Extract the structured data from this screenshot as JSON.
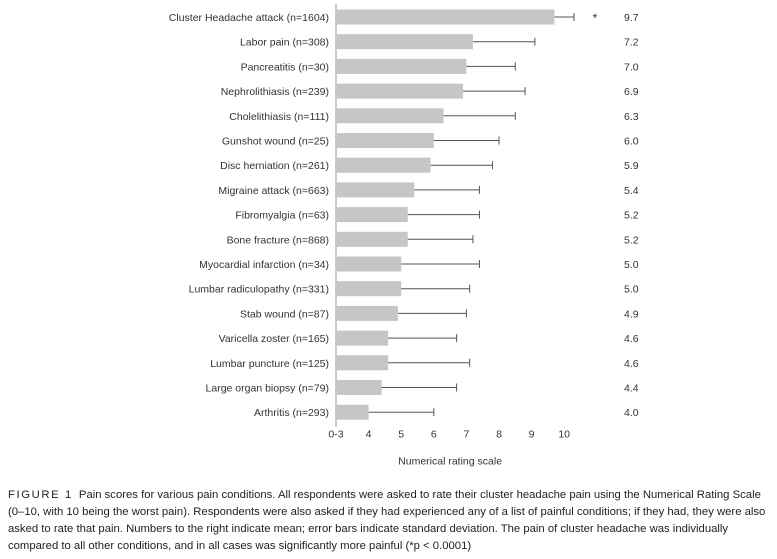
{
  "chart_data": {
    "type": "bar",
    "orientation": "horizontal",
    "categories": [
      "Cluster Headache attack (n=1604)",
      "Labor pain (n=308)",
      "Pancreatitis (n=30)",
      "Nephrolithiasis (n=239)",
      "Cholelithiasis (n=111)",
      "Gunshot wound (n=25)",
      "Disc herniation (n=261)",
      "Migraine attack (n=663)",
      "Fibromyalgia (n=63)",
      "Bone fracture (n=868)",
      "Myocardial infarction (n=34)",
      "Lumbar radiculopathy (n=331)",
      "Stab wound (n=87)",
      "Varicella zoster (n=165)",
      "Lumbar puncture (n=125)",
      "Large organ biopsy (n=79)",
      "Arthritis (n=293)"
    ],
    "values": [
      9.7,
      7.2,
      7.0,
      6.9,
      6.3,
      6.0,
      5.9,
      5.4,
      5.2,
      5.2,
      5.0,
      5.0,
      4.9,
      4.6,
      4.6,
      4.4,
      4.0
    ],
    "value_labels": [
      "9.7",
      "7.2",
      "7.0",
      "6.9",
      "6.3",
      "6.0",
      "5.9",
      "5.4",
      "5.2",
      "5.2",
      "5.0",
      "5.0",
      "4.9",
      "4.6",
      "4.6",
      "4.4",
      "4.0"
    ],
    "error_upper": [
      10.3,
      9.1,
      8.5,
      8.8,
      8.5,
      8.0,
      7.8,
      7.4,
      7.4,
      7.2,
      7.4,
      7.1,
      7.0,
      6.7,
      7.1,
      6.7,
      6.0
    ],
    "significance_marker": "*",
    "xlabel": "Numerical rating scale",
    "xlim": [
      3,
      10.5
    ],
    "xticks": [
      3,
      4,
      5,
      6,
      7,
      8,
      9,
      10
    ],
    "xtick_labels": [
      "0-3",
      "4",
      "5",
      "6",
      "7",
      "8",
      "9",
      "10"
    ],
    "bar_color": "#c6c6c6",
    "error_color": "#555555",
    "grid": false
  },
  "caption": {
    "label": "FIGURE 1",
    "text": "Pain scores for various pain conditions. All respondents were asked to rate their cluster headache pain using the Numerical Rating Scale (0–10, with 10 being the worst pain). Respondents were also asked if they had experienced any of a list of painful conditions; if they had, they were also asked to rate that pain. Numbers to the right indicate mean; error bars indicate standard deviation. The pain of cluster headache was individually compared to all other conditions, and in all cases was significantly more painful (*p < 0.0001)"
  }
}
